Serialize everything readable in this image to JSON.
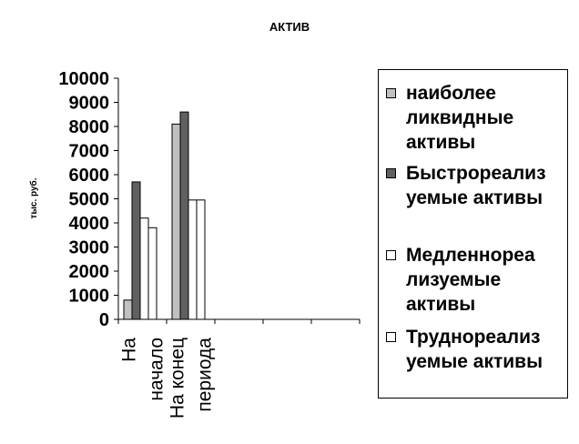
{
  "chart_data": {
    "type": "bar",
    "title": "АКТИВ",
    "ylabel": "тыс. руб.",
    "xlabel": "",
    "ylim": [
      0,
      10000
    ],
    "yticks": [
      0,
      1000,
      2000,
      3000,
      4000,
      5000,
      6000,
      7000,
      8000,
      9000,
      10000
    ],
    "categories": [
      "На начало",
      "На конец периода"
    ],
    "category_lines": [
      [
        "На",
        "начало"
      ],
      [
        "На конец",
        "периода"
      ]
    ],
    "series": [
      {
        "name": "наиболее ликвидные активы",
        "legend_lines": "наиболее\nликвидные\nактивы",
        "color": "#c0c0c0",
        "values": [
          800,
          8100
        ]
      },
      {
        "name": "Быстрореализуемые активы",
        "legend_lines": "Быстрореализ\nуемые активы",
        "color": "#606060",
        "values": [
          5700,
          8600
        ]
      },
      {
        "name": "Медленнореализуемые активы",
        "legend_lines": "Медленнореа\nлизуемые\nактивы",
        "color": "#ffffff",
        "values": [
          4200,
          4950
        ]
      },
      {
        "name": "Труднореализуемые активы",
        "legend_lines": "Труднореализ\nуемые активы",
        "color": "#ffffff",
        "values": [
          3800,
          4950
        ]
      }
    ],
    "grid": false,
    "legend_position": "right"
  }
}
